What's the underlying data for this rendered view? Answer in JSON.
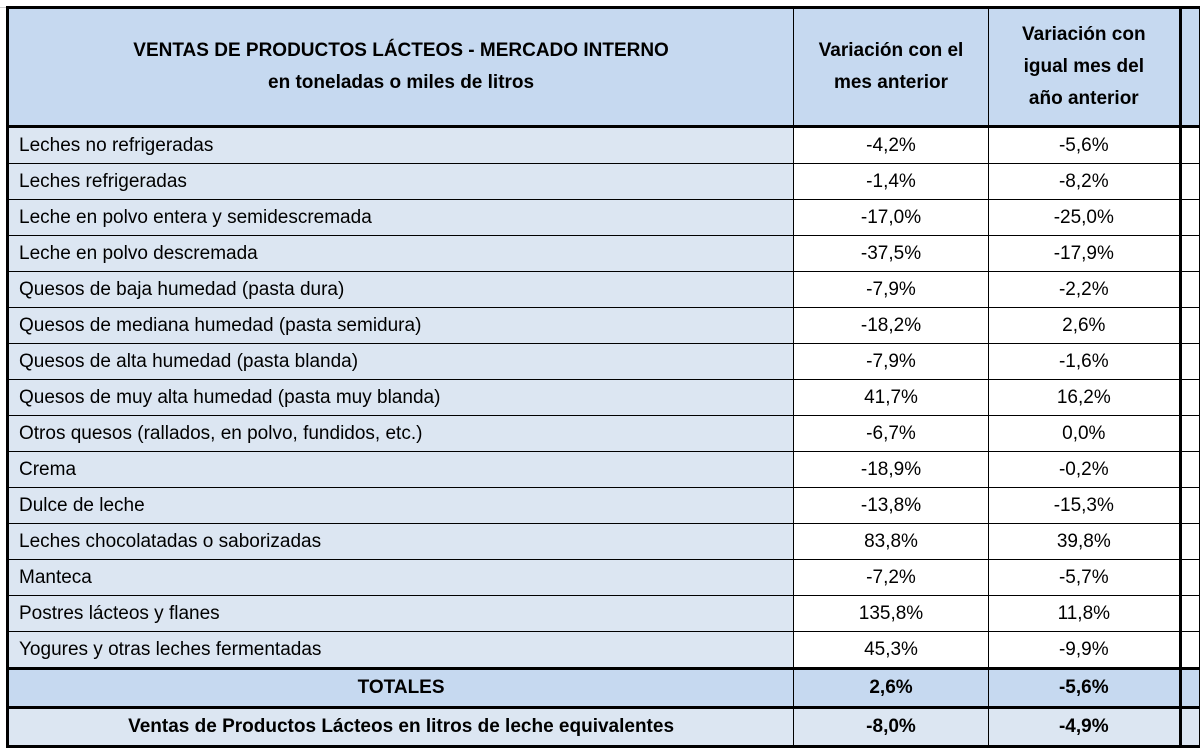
{
  "header": {
    "title": [
      "VENTAS DE PRODUCTOS LÁCTEOS - MERCADO INTERNO",
      "en toneladas o miles de litros"
    ],
    "columns": [
      [
        "Variación con el",
        "mes anterior"
      ],
      [
        "Variación con",
        "igual mes del",
        "año anterior"
      ]
    ]
  },
  "table": {
    "rows": [
      [
        "Leches no refrigeradas",
        "-4,2%",
        "-5,6%"
      ],
      [
        "Leches refrigeradas",
        "-1,4%",
        "-8,2%"
      ],
      [
        "Leche en polvo entera y semidescremada",
        "-17,0%",
        "-25,0%"
      ],
      [
        "Leche en polvo descremada",
        "-37,5%",
        "-17,9%"
      ],
      [
        "Quesos de baja humedad (pasta dura)",
        "-7,9%",
        "-2,2%"
      ],
      [
        "Quesos de mediana humedad (pasta semidura)",
        "-18,2%",
        "2,6%"
      ],
      [
        "Quesos de alta humedad (pasta blanda)",
        "-7,9%",
        "-1,6%"
      ],
      [
        "Quesos de muy alta humedad (pasta muy blanda)",
        "41,7%",
        "16,2%"
      ],
      [
        "Otros quesos (rallados, en polvo, fundidos, etc.)",
        "-6,7%",
        "0,0%"
      ],
      [
        "Crema",
        "-18,9%",
        "-0,2%"
      ],
      [
        "Dulce de leche",
        "-13,8%",
        "-15,3%"
      ],
      [
        "Leches chocolatadas o saborizadas",
        "83,8%",
        "39,8%"
      ],
      [
        "Manteca",
        "-7,2%",
        "-5,7%"
      ],
      [
        "Postres lácteos y flanes",
        "135,8%",
        "11,8%"
      ],
      [
        "Yogures y otras leches fermentadas",
        "45,3%",
        "-9,9%"
      ]
    ],
    "totals": [
      "TOTALES",
      "2,6%",
      "-5,6%"
    ],
    "equivalent": [
      "Ventas de Productos Lácteos en litros de leche equivalentes",
      "-8,0%",
      "-4,9%"
    ]
  }
}
